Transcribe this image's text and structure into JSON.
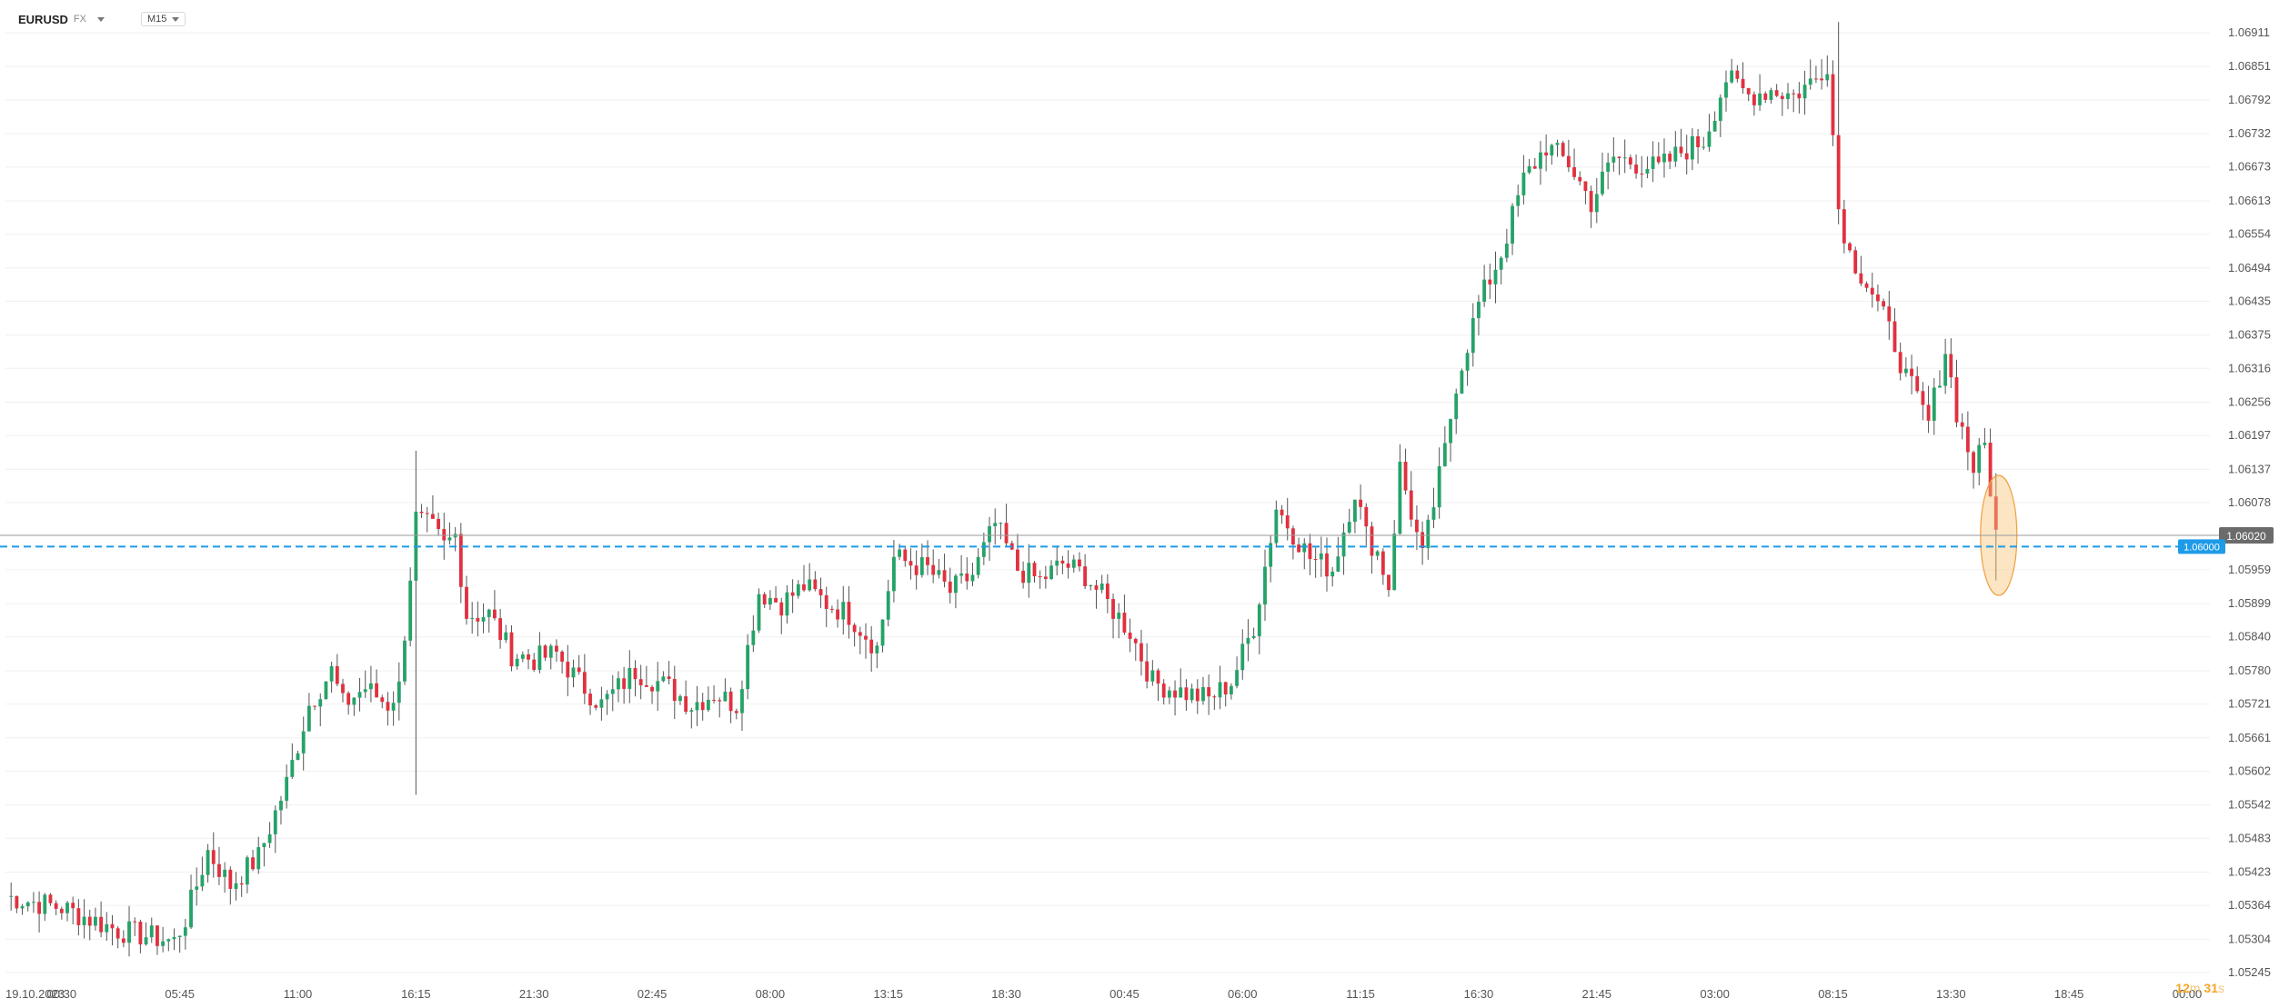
{
  "header": {
    "symbol": "EURUSD",
    "symbol_tag": "FX",
    "timeframe": "M15"
  },
  "countdown": {
    "minutes": "12",
    "min_unit": "m",
    "seconds": "31",
    "sec_unit": "s"
  },
  "colors": {
    "up": "#26a269",
    "down": "#e0313f",
    "wick": "#555555",
    "grid": "#f0f0f0",
    "line": "#9a9a9a",
    "level": "#1e9be8",
    "highlight": "#f7c57a"
  },
  "chart_data": {
    "type": "candlestick",
    "ylim": [
      1.05245,
      1.0694
    ],
    "y_ticks": [
      "1.06911",
      "1.06851",
      "1.06792",
      "1.06732",
      "1.06673",
      "1.06613",
      "1.06554",
      "1.06494",
      "1.06435",
      "1.06375",
      "1.06316",
      "1.06256",
      "1.06197",
      "1.06137",
      "1.06078",
      "1.05959",
      "1.05899",
      "1.05840",
      "1.05780",
      "1.05721",
      "1.05661",
      "1.05602",
      "1.05542",
      "1.05483",
      "1.05423",
      "1.05364",
      "1.05304",
      "1.05245"
    ],
    "x_ticks": [
      "19.10.2023",
      "00:30",
      "05:45",
      "11:00",
      "16:15",
      "21:30",
      "02:45",
      "08:00",
      "13:15",
      "18:30",
      "00:45",
      "06:00",
      "11:15",
      "16:30",
      "21:45",
      "03:00",
      "08:15",
      "13:30",
      "18:45",
      "00:00"
    ],
    "x_tick_index": [
      0,
      10,
      31,
      52,
      73,
      94,
      115,
      136,
      157,
      178,
      199,
      220,
      241,
      262,
      283,
      304,
      325,
      346,
      367,
      388
    ],
    "current_price": 1.0602,
    "current_price_label": "1.06020",
    "level": 1.06,
    "level_label": "1.06000",
    "anchors": [
      [
        0,
        1.0538
      ],
      [
        10,
        1.0536
      ],
      [
        20,
        1.0532
      ],
      [
        30,
        1.053
      ],
      [
        32,
        1.0534
      ],
      [
        36,
        1.0546
      ],
      [
        40,
        1.054
      ],
      [
        45,
        1.0545
      ],
      [
        50,
        1.0558
      ],
      [
        54,
        1.0572
      ],
      [
        58,
        1.0578
      ],
      [
        60,
        1.0572
      ],
      [
        64,
        1.0575
      ],
      [
        68,
        1.0572
      ],
      [
        70,
        1.0575
      ],
      [
        73,
        1.0605
      ],
      [
        76,
        1.0603
      ],
      [
        78,
        1.06
      ],
      [
        80,
        1.0602
      ],
      [
        82,
        1.0588
      ],
      [
        86,
        1.0588
      ],
      [
        90,
        1.0581
      ],
      [
        94,
        1.058
      ],
      [
        98,
        1.0581
      ],
      [
        102,
        1.0576
      ],
      [
        106,
        1.0572
      ],
      [
        112,
        1.0578
      ],
      [
        118,
        1.0575
      ],
      [
        122,
        1.0572
      ],
      [
        126,
        1.0574
      ],
      [
        130,
        1.0572
      ],
      [
        134,
        1.0592
      ],
      [
        138,
        1.059
      ],
      [
        142,
        1.0593
      ],
      [
        146,
        1.059
      ],
      [
        150,
        1.0588
      ],
      [
        155,
        1.0582
      ],
      [
        158,
        1.0598
      ],
      [
        164,
        1.0596
      ],
      [
        168,
        1.0592
      ],
      [
        172,
        1.0595
      ],
      [
        176,
        1.0604
      ],
      [
        180,
        1.0596
      ],
      [
        184,
        1.0594
      ],
      [
        188,
        1.0597
      ],
      [
        192,
        1.0595
      ],
      [
        196,
        1.059
      ],
      [
        200,
        1.0585
      ],
      [
        204,
        1.0576
      ],
      [
        210,
        1.0574
      ],
      [
        214,
        1.0573
      ],
      [
        218,
        1.0576
      ],
      [
        222,
        1.0586
      ],
      [
        226,
        1.0607
      ],
      [
        228,
        1.0604
      ],
      [
        232,
        1.0598
      ],
      [
        236,
        1.0596
      ],
      [
        240,
        1.061
      ],
      [
        242,
        1.0602
      ],
      [
        244,
        1.0599
      ],
      [
        246,
        1.0593
      ],
      [
        248,
        1.0614
      ],
      [
        252,
        1.0598
      ],
      [
        256,
        1.0617
      ],
      [
        258,
        1.0629
      ],
      [
        262,
        1.0643
      ],
      [
        266,
        1.0652
      ],
      [
        270,
        1.0665
      ],
      [
        274,
        1.0671
      ],
      [
        278,
        1.0668
      ],
      [
        282,
        1.0661
      ],
      [
        286,
        1.0669
      ],
      [
        290,
        1.0668
      ],
      [
        294,
        1.0667
      ],
      [
        298,
        1.067
      ],
      [
        302,
        1.0672
      ],
      [
        306,
        1.0683
      ],
      [
        310,
        1.068
      ],
      [
        314,
        1.0681
      ],
      [
        318,
        1.068
      ],
      [
        322,
        1.0683
      ],
      [
        324,
        1.0686
      ],
      [
        326,
        1.066
      ],
      [
        328,
        1.0652
      ],
      [
        332,
        1.0645
      ],
      [
        336,
        1.0636
      ],
      [
        338,
        1.063
      ],
      [
        342,
        1.0622
      ],
      [
        345,
        1.0635
      ],
      [
        347,
        1.0624
      ],
      [
        350,
        1.0614
      ],
      [
        352,
        1.0618
      ],
      [
        354,
        1.0603
      ]
    ],
    "highlight_index": 354
  }
}
